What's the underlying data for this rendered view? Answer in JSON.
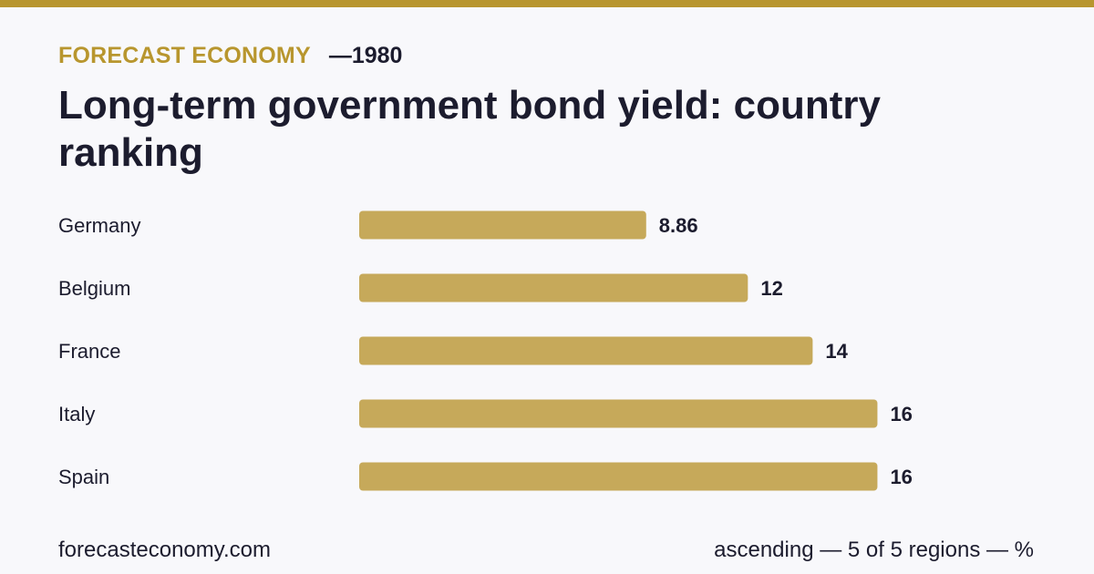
{
  "colors": {
    "accent": "#b8962e",
    "bar": "#c6a95a",
    "text": "#1c1c2e",
    "background": "#f8f8fb"
  },
  "header": {
    "brand": "FORECAST ECONOMY",
    "separator": "—",
    "year": "1980"
  },
  "title": "Long-term government bond yield: country ranking",
  "chart_data": {
    "type": "bar",
    "orientation": "horizontal",
    "categories": [
      "Germany",
      "Belgium",
      "France",
      "Italy",
      "Spain"
    ],
    "values": [
      8.86,
      12,
      14,
      16,
      16
    ],
    "value_labels": [
      "8.86",
      "12",
      "14",
      "16",
      "16"
    ],
    "xlim": [
      0,
      16.1
    ],
    "grid": false,
    "legend": "none"
  },
  "footer": {
    "site": "forecasteconomy.com",
    "note": "ascending — 5 of 5 regions — %"
  }
}
